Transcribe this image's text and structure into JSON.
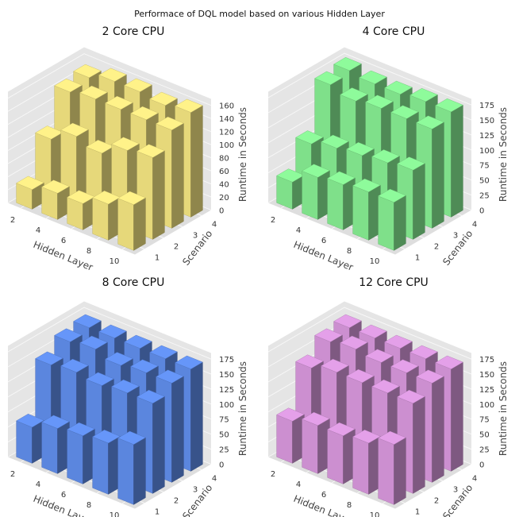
{
  "figure_title": "Performace of DQL model based on various Hidden Layer",
  "colors": {
    "background": "#e5e5e5",
    "bar_2core": "#e6d87a",
    "bar_4core": "#7fe08a",
    "bar_8core": "#5b86de",
    "bar_12core": "#cc8fd0"
  },
  "chart_data": [
    {
      "type": "bar3d",
      "title": "2 Core CPU",
      "xlabel": "Hidden Layer",
      "ylabel": "Scenario",
      "zlabel": "Runtime in Seconds",
      "x": [
        2,
        4,
        6,
        8,
        10
      ],
      "y": [
        1,
        2,
        3,
        4
      ],
      "x_ticks": [
        "2",
        "4",
        "6",
        "8",
        "10"
      ],
      "y_ticks": [
        "1",
        "2",
        "3",
        "4"
      ],
      "z_ticks": [
        "0",
        "20",
        "40",
        "60",
        "80",
        "100",
        "120",
        "140",
        "160"
      ],
      "zlim": [
        0,
        170
      ],
      "color": "#e6d87a",
      "values": [
        [
          30,
          90,
          145,
          150
        ],
        [
          40,
          110,
          150,
          160
        ],
        [
          40,
          100,
          150,
          160
        ],
        [
          55,
          120,
          150,
          155
        ],
        [
          70,
          125,
          150,
          160
        ]
      ]
    },
    {
      "type": "bar3d",
      "title": "4 Core CPU",
      "xlabel": "Hidden Layer",
      "ylabel": "Scenario",
      "zlabel": "Runtime in Seconds",
      "x": [
        2,
        4,
        6,
        8,
        10
      ],
      "y": [
        1,
        2,
        3,
        4
      ],
      "x_ticks": [
        "2",
        "4",
        "6",
        "8",
        "10"
      ],
      "y_ticks": [
        "1",
        "2",
        "3",
        "4"
      ],
      "z_ticks": [
        "0",
        "25",
        "50",
        "75",
        "100",
        "125",
        "150",
        "175"
      ],
      "zlim": [
        0,
        185
      ],
      "color": "#7fe08a",
      "values": [
        [
          45,
          90,
          170,
          175
        ],
        [
          70,
          100,
          160,
          170
        ],
        [
          75,
          105,
          165,
          170
        ],
        [
          80,
          110,
          165,
          175
        ],
        [
          80,
          115,
          165,
          175
        ]
      ]
    },
    {
      "type": "bar3d",
      "title": "8 Core CPU",
      "xlabel": "Hidden Layer",
      "ylabel": "Scenario",
      "zlabel": "Runtime in Seconds",
      "x": [
        2,
        4,
        6,
        8,
        10
      ],
      "y": [
        1,
        2,
        3,
        4
      ],
      "x_ticks": [
        "2",
        "4",
        "6",
        "8",
        "10"
      ],
      "y_ticks": [
        "1",
        "2",
        "3",
        "4"
      ],
      "z_ticks": [
        "0",
        "25",
        "50",
        "75",
        "100",
        "125",
        "150",
        "175"
      ],
      "zlim": [
        0,
        185
      ],
      "color": "#5b86de",
      "values": [
        [
          60,
          145,
          165,
          170
        ],
        [
          75,
          150,
          170,
          170
        ],
        [
          80,
          145,
          160,
          170
        ],
        [
          85,
          150,
          165,
          170
        ],
        [
          100,
          150,
          165,
          170
        ]
      ]
    },
    {
      "type": "bar3d",
      "title": "12 Core CPU",
      "xlabel": "Hidden Layer",
      "ylabel": "Scenario",
      "zlabel": "Runtime in Seconds",
      "x": [
        2,
        4,
        6,
        8,
        10
      ],
      "y": [
        1,
        2,
        3,
        4
      ],
      "x_ticks": [
        "2",
        "4",
        "6",
        "8",
        "10"
      ],
      "y_ticks": [
        "1",
        "2",
        "3",
        "4"
      ],
      "z_ticks": [
        "0",
        "25",
        "50",
        "75",
        "100",
        "125",
        "150",
        "175"
      ],
      "zlim": [
        0,
        185
      ],
      "color": "#cc8fd0",
      "values": [
        [
          70,
          140,
          165,
          170
        ],
        [
          80,
          150,
          170,
          170
        ],
        [
          80,
          150,
          165,
          170
        ],
        [
          85,
          150,
          165,
          170
        ],
        [
          100,
          150,
          165,
          170
        ]
      ]
    }
  ]
}
